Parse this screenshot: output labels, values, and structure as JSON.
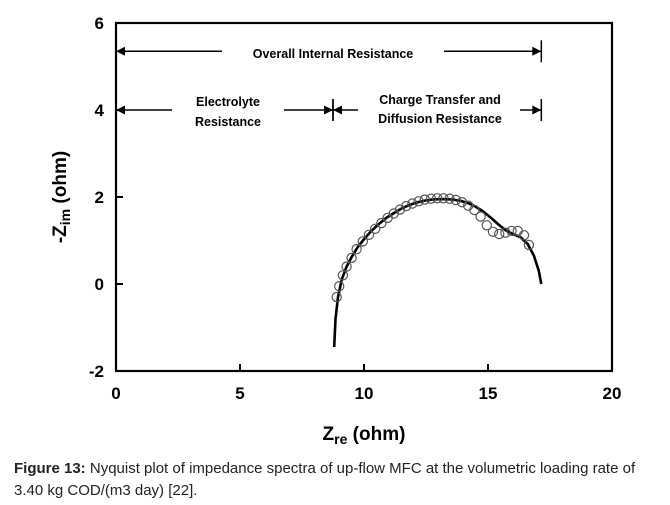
{
  "chart_data": {
    "type": "scatter",
    "xlabel_main": "Z",
    "xlabel_sub": "re",
    "xlabel_unit": " (ohm)",
    "ylabel_main": "-Z",
    "ylabel_sub": "im",
    "ylabel_unit": " (ohm)",
    "xlim": [
      0,
      20
    ],
    "ylim": [
      -2,
      6
    ],
    "xticks": [
      "0",
      "5",
      "10",
      "15",
      "20"
    ],
    "yticks": [
      "-2",
      "0",
      "2",
      "4",
      "6"
    ],
    "grid": false,
    "series": [
      {
        "kind": "markers",
        "x": [
          8.9,
          9.0,
          9.15,
          9.3,
          9.5,
          9.7,
          9.95,
          10.2,
          10.45,
          10.7,
          10.95,
          11.2,
          11.45,
          11.7,
          11.95,
          12.2,
          12.45,
          12.7,
          12.95,
          13.2,
          13.45,
          13.7,
          13.95,
          14.2,
          14.45,
          14.7,
          14.95,
          15.2,
          15.45,
          15.7,
          15.95,
          16.2,
          16.45,
          16.65
        ],
        "y": [
          -0.3,
          -0.05,
          0.2,
          0.4,
          0.6,
          0.8,
          0.98,
          1.13,
          1.27,
          1.4,
          1.52,
          1.62,
          1.71,
          1.79,
          1.85,
          1.9,
          1.94,
          1.96,
          1.97,
          1.97,
          1.96,
          1.93,
          1.88,
          1.8,
          1.7,
          1.55,
          1.35,
          1.2,
          1.15,
          1.18,
          1.22,
          1.22,
          1.12,
          0.9
        ]
      },
      {
        "kind": "fit-line",
        "x": [
          8.8,
          8.85,
          8.95,
          9.1,
          9.3,
          9.5,
          9.75,
          10.0,
          10.3,
          10.6,
          10.9,
          11.2,
          11.5,
          11.8,
          12.1,
          12.4,
          12.7,
          13.0,
          13.3,
          13.6,
          13.9,
          14.2,
          14.5,
          14.8,
          15.1,
          15.4,
          15.7,
          16.0,
          16.3,
          16.6,
          16.85,
          17.05,
          17.15
        ],
        "y": [
          -1.45,
          -0.8,
          -0.3,
          0.1,
          0.4,
          0.62,
          0.85,
          1.03,
          1.22,
          1.38,
          1.52,
          1.63,
          1.73,
          1.81,
          1.87,
          1.91,
          1.94,
          1.95,
          1.95,
          1.94,
          1.91,
          1.86,
          1.78,
          1.67,
          1.53,
          1.38,
          1.24,
          1.15,
          1.08,
          0.92,
          0.65,
          0.3,
          0.0
        ]
      }
    ],
    "annotations": [
      {
        "text": "Overall Internal Resistance",
        "x_start": 0,
        "x_end": 17.15,
        "y": 5.35
      },
      {
        "text_line1": "Electrolyte",
        "text_line2": "Resistance",
        "x_start": 0,
        "x_end": 8.75,
        "y": 4.0
      },
      {
        "text_line1": "Charge Transfer and",
        "text_line2": "Diffusion Resistance",
        "x_start": 8.75,
        "x_end": 17.15,
        "y": 4.0
      }
    ]
  },
  "caption": {
    "label": "Figure 13:",
    "text": " Nyquist plot of impedance spectra of up-flow MFC at the volumetric loading rate of 3.40 kg COD/(m3 day) [22]."
  }
}
